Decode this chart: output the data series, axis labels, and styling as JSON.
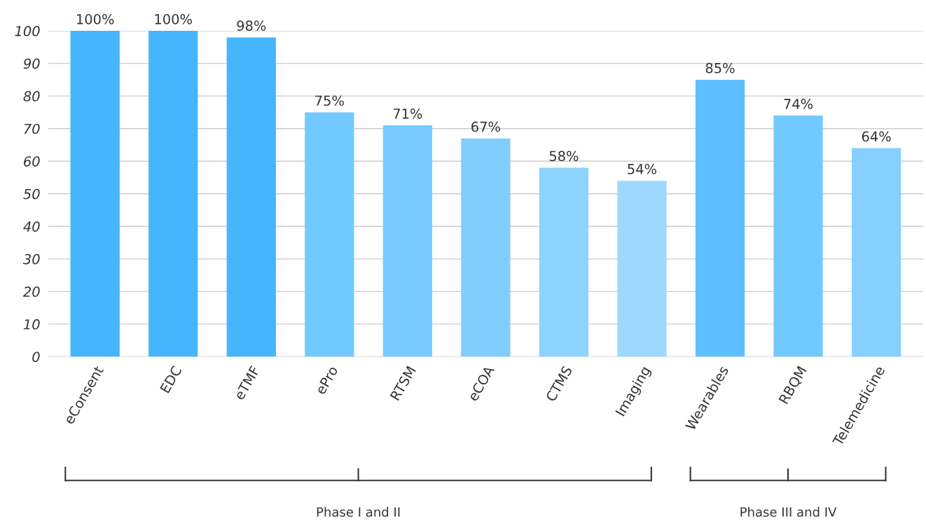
{
  "chart_data": {
    "type": "bar",
    "categories": [
      "eConsent",
      "EDC",
      "eTMF",
      "ePro",
      "RTSM",
      "eCOA",
      "CTMS",
      "Imaging",
      "Wearables",
      "RBQM",
      "Telemedicine"
    ],
    "values": [
      100,
      100,
      98,
      75,
      71,
      67,
      58,
      54,
      85,
      74,
      64
    ],
    "value_labels": [
      "100%",
      "100%",
      "98%",
      "75%",
      "71%",
      "67%",
      "58%",
      "54%",
      "85%",
      "74%",
      "64%"
    ],
    "colors": [
      "#45b6fe",
      "#45b6fe",
      "#45b6fe",
      "#72c9ff",
      "#78cbff",
      "#7fceff",
      "#8dd3ff",
      "#9dd9ff",
      "#5dbfff",
      "#72c9ff",
      "#85d0ff"
    ],
    "ylim": [
      0,
      100
    ],
    "yticks": [
      0,
      10,
      20,
      30,
      40,
      50,
      60,
      70,
      80,
      90,
      100
    ],
    "grid": "y",
    "annotations": [
      "Phase I and II",
      "Phase III and IV"
    ]
  }
}
